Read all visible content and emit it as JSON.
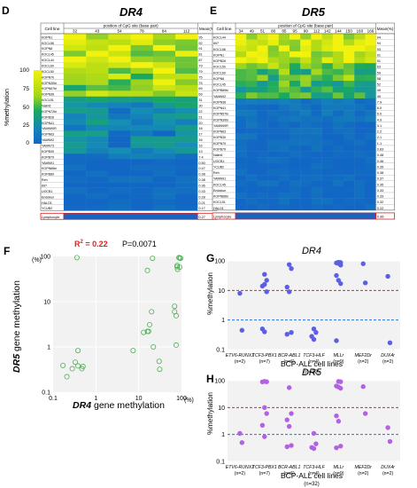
{
  "panels": {
    "D": {
      "letter": "D",
      "title": "DR4",
      "header_cell": "Cell line",
      "header_pos": "position of CpG site (base pair)",
      "header_mean": "Mean(%)",
      "positions": [
        "32",
        "43",
        "54",
        "78",
        "84",
        "112"
      ],
      "rows": [
        [
          "KOPN1",
          "95"
        ],
        [
          "KOCL58",
          "92"
        ],
        [
          "KOPN8",
          "91"
        ],
        [
          "KOCL45",
          "81"
        ],
        [
          "KOCL44",
          "87"
        ],
        [
          "KOCL69",
          "79"
        ],
        [
          "KOCL50",
          "79"
        ],
        [
          "KOPN70",
          "75"
        ],
        [
          "KOPN30bi",
          "75"
        ],
        [
          "KOPN57bi",
          "69"
        ],
        [
          "KOPN36",
          "69"
        ],
        [
          "KOCL51",
          "31"
        ],
        [
          "Nalm6",
          "30"
        ],
        [
          "KOPN72bi",
          "22"
        ],
        [
          "KOPB26",
          "21"
        ],
        [
          "KOPN41",
          "20"
        ],
        [
          "YAMN90R",
          "18"
        ],
        [
          "KOPN63",
          "17"
        ],
        [
          "YAMN92",
          "16"
        ],
        [
          "YAMN73",
          "16"
        ],
        [
          "KOPB30",
          "13"
        ],
        [
          "KOPB79",
          "7.4"
        ],
        [
          "YAMN91",
          "0.50"
        ],
        [
          "KOPN66bi",
          "0.47"
        ],
        [
          "KOPB89",
          "0.38"
        ],
        [
          "Reh",
          "0.38"
        ],
        [
          "697",
          "0.36"
        ],
        [
          "UOCB1",
          "0.33"
        ],
        [
          "Endokun",
          "0.28"
        ],
        [
          "HALO1",
          "0.21"
        ],
        [
          "YCUB2",
          "0.17"
        ]
      ],
      "lymphocyte": "Lymphocyte",
      "lymphocyte_mean": "0.27"
    },
    "E": {
      "letter": "E",
      "title": "DR5",
      "header_cell": "Cell line",
      "header_pos": "position of CpG site (base pair)",
      "header_mean": "Mean(%)",
      "positions": [
        "34",
        "49",
        "51",
        "80",
        "85",
        "95",
        "99",
        "112",
        "142",
        "144",
        "150",
        "160",
        "166"
      ],
      "rows": [
        [
          "KOCL44",
          "94"
        ],
        [
          "697",
          "94"
        ],
        [
          "KOCL58",
          "93"
        ],
        [
          "KOPN1",
          "91"
        ],
        [
          "KOPB26",
          "91"
        ],
        [
          "KOCL50",
          "63"
        ],
        [
          "KOCL69",
          "59"
        ],
        [
          "KOPN8",
          "58"
        ],
        [
          "KOCL45",
          "52"
        ],
        [
          "KOPB89bi",
          "49"
        ],
        [
          "YAMN92",
          "49"
        ],
        [
          "KOPN36",
          "7.9"
        ],
        [
          "KOPN41",
          "6.0"
        ],
        [
          "KOPN57bi",
          "6.0"
        ],
        [
          "KOPN30bi",
          "4.9"
        ],
        [
          "YAMN90R",
          "3.1"
        ],
        [
          "KOPN63",
          "2.2"
        ],
        [
          "KOPB30",
          "2.1"
        ],
        [
          "KOPN70",
          "1.1"
        ],
        [
          "KOPB79",
          "0.83"
        ],
        [
          "Nalm6",
          "0.48"
        ],
        [
          "UOCB1",
          "0.46"
        ],
        [
          "YCUB2",
          "0.39"
        ],
        [
          "Reh",
          "0.38"
        ],
        [
          "YAMN91",
          "0.37"
        ],
        [
          "KOCL45",
          "0.35"
        ],
        [
          "Endokun",
          "0.33"
        ],
        [
          "KOPN66bi",
          "0.33"
        ],
        [
          "KOCL51",
          "0.32"
        ],
        [
          "HALO1",
          "0.22"
        ]
      ],
      "lymphocyte": "Lymphocyte",
      "lymphocyte_mean": "0.36"
    },
    "F": {
      "letter": "F",
      "r2": "R",
      "r2_sup": "2",
      "r2_val": " = 0.22",
      "pval": "P=0.0071",
      "y_unit": "(%)",
      "x_unit": "(%)",
      "ylabel_gene": "DR5",
      "ylabel_rest": " gene methylation",
      "xlabel_gene": "DR4",
      "xlabel_rest": " gene methylation"
    },
    "G": {
      "letter": "G",
      "title": "DR4",
      "ylabel": "%methylation",
      "xlabel": "BCP-ALL cell lines",
      "n_total": "(n=32)"
    },
    "H": {
      "letter": "H",
      "title": "DR5",
      "ylabel": "%methylation",
      "xlabel": "BCP-ALL cell lines",
      "n_total": "(n=32)"
    }
  },
  "colorbar": {
    "ticks": [
      "100",
      "75",
      "50",
      "25",
      "0"
    ],
    "label": "%methylation",
    "colors": {
      "high": "#f2f20d",
      "mid": "#19a861",
      "low": "#1266c4"
    }
  },
  "groups": [
    {
      "name": "ETV6-RUNX1",
      "n": "(n=2)"
    },
    {
      "name": "TCF3-PBX1",
      "n": "(n=7)"
    },
    {
      "name": "BCR-ABL1",
      "n": "(n=6)"
    },
    {
      "name": "TCF3-HLF",
      "n": "(n=4)"
    },
    {
      "name": "MLLr",
      "n": "(n=9)"
    },
    {
      "name": "MEF2Dr",
      "n": "(n=2)"
    },
    {
      "name": "DUX4r",
      "n": "(n=2)"
    }
  ],
  "chart_data": [
    {
      "type": "scatter",
      "panel": "F",
      "xscale": "log",
      "yscale": "log",
      "xlim": [
        0.1,
        100
      ],
      "ylim": [
        0.1,
        100
      ],
      "xticks": [
        "0.1",
        "1",
        "10",
        "100"
      ],
      "yticks": [
        "0.1",
        "1",
        "10",
        "100"
      ],
      "points": [
        [
          0.17,
          0.39
        ],
        [
          0.21,
          0.22
        ],
        [
          0.28,
          0.33
        ],
        [
          0.33,
          0.46
        ],
        [
          0.36,
          94
        ],
        [
          0.38,
          0.38
        ],
        [
          0.38,
          0.83
        ],
        [
          0.47,
          0.33
        ],
        [
          0.5,
          0.37
        ],
        [
          7.4,
          0.83
        ],
        [
          13,
          2.1
        ],
        [
          16,
          49
        ],
        [
          16,
          2.2
        ],
        [
          17,
          2.2
        ],
        [
          18,
          3.1
        ],
        [
          20,
          6.0
        ],
        [
          21,
          91
        ],
        [
          22,
          1.0
        ],
        [
          30,
          0.48
        ],
        [
          31,
          0.32
        ],
        [
          69,
          7.9
        ],
        [
          69,
          6.0
        ],
        [
          75,
          4.9
        ],
        [
          75,
          1.1
        ],
        [
          79,
          63
        ],
        [
          79,
          59
        ],
        [
          81,
          52
        ],
        [
          87,
          94
        ],
        [
          91,
          58
        ],
        [
          92,
          93
        ],
        [
          95,
          91
        ]
      ]
    },
    {
      "type": "scatter",
      "panel": "G",
      "yscale": "log",
      "ylim": [
        0.1,
        100
      ],
      "yticks": [
        "0.1",
        "1",
        "10",
        "100"
      ],
      "ref_lines": [
        10,
        1
      ],
      "points": [
        [
          0,
          8
        ],
        [
          0,
          0.45
        ],
        [
          1,
          35
        ],
        [
          1,
          22
        ],
        [
          1,
          14
        ],
        [
          1,
          16
        ],
        [
          1,
          9
        ],
        [
          1,
          0.5
        ],
        [
          1,
          0.4
        ],
        [
          2,
          75
        ],
        [
          2,
          55
        ],
        [
          2,
          13
        ],
        [
          2,
          9
        ],
        [
          2,
          0.38
        ],
        [
          2,
          0.33
        ],
        [
          3,
          0.5
        ],
        [
          3,
          0.38
        ],
        [
          3,
          0.28
        ],
        [
          3,
          0.22
        ],
        [
          4,
          90
        ],
        [
          4,
          88
        ],
        [
          4,
          85
        ],
        [
          4,
          82
        ],
        [
          4,
          72
        ],
        [
          4,
          32
        ],
        [
          4,
          22
        ],
        [
          4,
          17
        ],
        [
          4,
          0.2
        ],
        [
          5,
          80
        ],
        [
          5,
          18
        ],
        [
          6,
          30
        ],
        [
          6,
          0.17
        ]
      ]
    },
    {
      "type": "scatter",
      "panel": "H",
      "yscale": "log",
      "ylim": [
        0.1,
        100
      ],
      "yticks": [
        "0.1",
        "1",
        "10",
        "100"
      ],
      "ref_lines": [
        10,
        1
      ],
      "points": [
        [
          0,
          1.1
        ],
        [
          0,
          0.5
        ],
        [
          1,
          94
        ],
        [
          1,
          91
        ],
        [
          1,
          90
        ],
        [
          1,
          10
        ],
        [
          1,
          6
        ],
        [
          1,
          2.2
        ],
        [
          1,
          0.83
        ],
        [
          2,
          55
        ],
        [
          2,
          6
        ],
        [
          2,
          3.5
        ],
        [
          2,
          2
        ],
        [
          2,
          0.39
        ],
        [
          2,
          0.35
        ],
        [
          3,
          1.1
        ],
        [
          3,
          0.45
        ],
        [
          3,
          0.33
        ],
        [
          3,
          0.3
        ],
        [
          4,
          93
        ],
        [
          4,
          91
        ],
        [
          4,
          63
        ],
        [
          4,
          58
        ],
        [
          4,
          52
        ],
        [
          4,
          4.9
        ],
        [
          4,
          3.1
        ],
        [
          4,
          0.37
        ],
        [
          4,
          0.32
        ],
        [
          5,
          60
        ],
        [
          5,
          6
        ],
        [
          6,
          1.8
        ],
        [
          6,
          0.55
        ]
      ]
    }
  ]
}
